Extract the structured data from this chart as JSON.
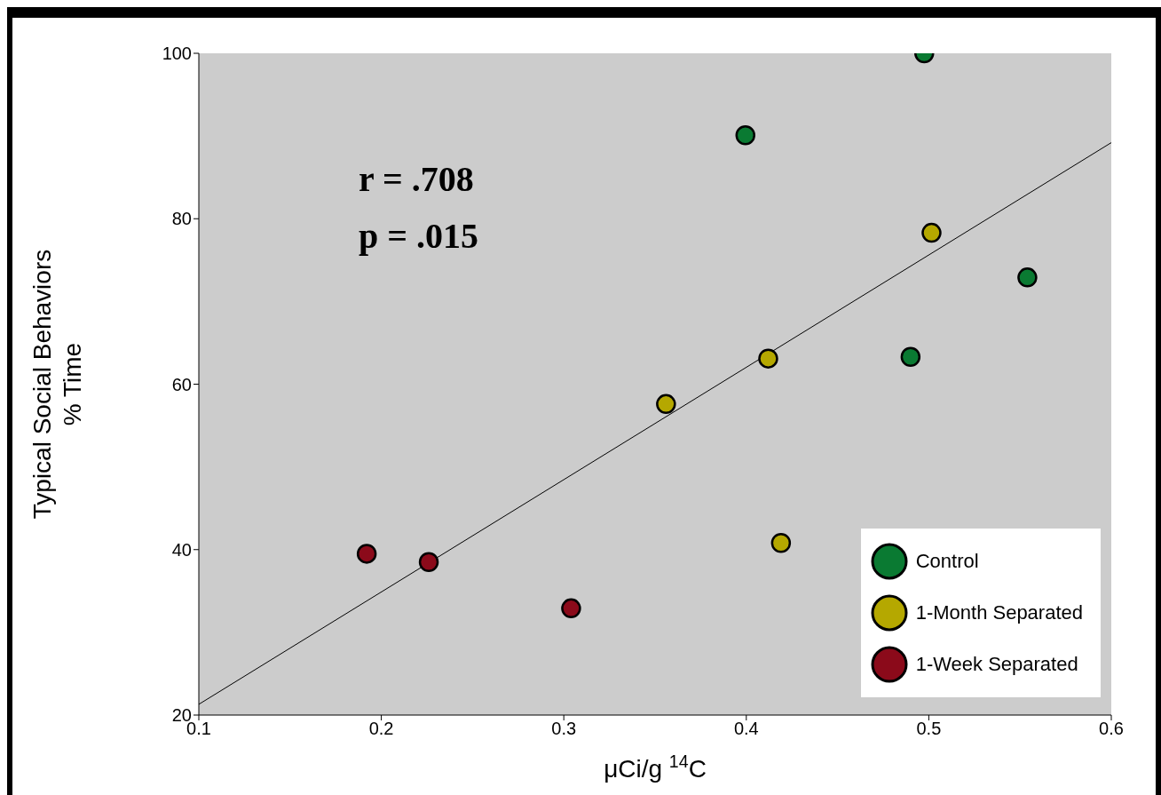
{
  "chart_data": {
    "type": "scatter",
    "xlabel": "μCi/g $^{14}$C",
    "ylabel": "Typical Social Behaviors\n% Time",
    "xlim": [
      0.1,
      0.6
    ],
    "xticks": [
      0.1,
      0.2,
      0.3,
      0.4,
      0.5,
      0.6
    ],
    "ylim": [
      20,
      100
    ],
    "yticks": [
      20,
      40,
      60,
      80,
      100
    ],
    "grid": false,
    "legend": "bottom right",
    "marker": "circle",
    "annotations": [
      "r = .708",
      "p = .015"
    ],
    "series": [
      {
        "name": "Control",
        "color": "#0a7a32",
        "x": [
          0.4975,
          0.3995,
          0.554,
          0.49
        ],
        "values": [
          100,
          90.1,
          72.9,
          63.3
        ]
      },
      {
        "name": "1-Month Separated",
        "color": "#b5a800",
        "x": [
          0.5015,
          0.412,
          0.356,
          0.419
        ],
        "values": [
          78.3,
          63.1,
          57.6,
          40.8
        ]
      },
      {
        "name": "1-Week Separated",
        "color": "#8b0a1a",
        "x": [
          0.192,
          0.226,
          0.304
        ],
        "values": [
          39.5,
          38.5,
          32.9
        ]
      },
      {
        "type": "line",
        "marker": "none",
        "color": "#000000",
        "x": [
          0.1,
          0.6
        ],
        "values": [
          21.3,
          89.2
        ]
      }
    ]
  }
}
